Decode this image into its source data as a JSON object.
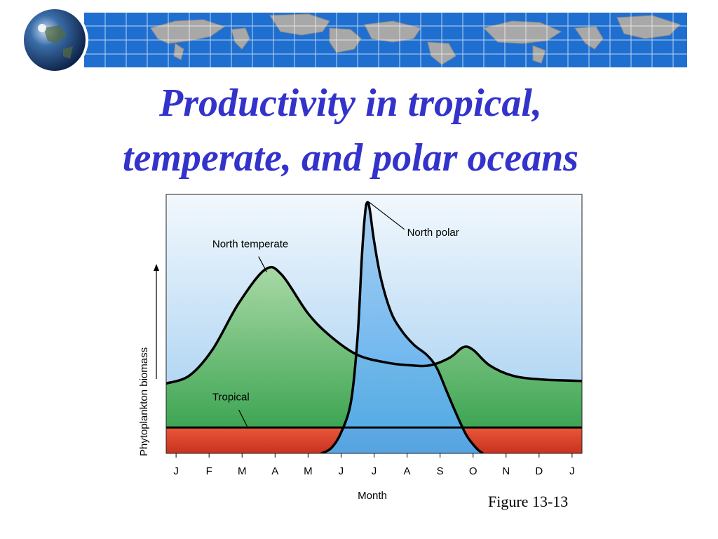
{
  "slide": {
    "title_line1": "Productivity in tropical,",
    "title_line2": "temperate, and polar oceans",
    "figure_caption": "Figure 13-13"
  },
  "colors": {
    "title": "#3333cc",
    "banner": "#1f6fd0",
    "tropical": "#d9462f",
    "temperate": "#5cb85c",
    "polar": "#6fb8ee",
    "sky_top": "#f2f8fd",
    "sky_bottom": "#9ccbf0"
  },
  "chart_data": {
    "type": "area",
    "xlabel": "Month",
    "ylabel": "Phytoplankton biomass",
    "categories": [
      "J",
      "F",
      "M",
      "A",
      "M",
      "J",
      "J",
      "A",
      "S",
      "O",
      "N",
      "D",
      "J"
    ],
    "x_range": [
      0,
      12.6
    ],
    "y_range": [
      0,
      100
    ],
    "y_tick_labels": false,
    "series": [
      {
        "name": "Tropical",
        "points": [
          [
            0,
            10
          ],
          [
            12.6,
            10
          ]
        ]
      },
      {
        "name": "North temperate",
        "points": [
          [
            0,
            27
          ],
          [
            0.7,
            30
          ],
          [
            1.4,
            40
          ],
          [
            2.2,
            58
          ],
          [
            3.0,
            71
          ],
          [
            3.5,
            69
          ],
          [
            4.3,
            54
          ],
          [
            5.0,
            45
          ],
          [
            5.8,
            38
          ],
          [
            6.7,
            35
          ],
          [
            7.4,
            34
          ],
          [
            8.0,
            34
          ],
          [
            8.6,
            37
          ],
          [
            9.0,
            41
          ],
          [
            9.3,
            40
          ],
          [
            9.8,
            34
          ],
          [
            10.5,
            30
          ],
          [
            11.4,
            28.5
          ],
          [
            12.6,
            28
          ]
        ]
      },
      {
        "name": "North polar",
        "points": [
          [
            4.7,
            0
          ],
          [
            5.0,
            2
          ],
          [
            5.3,
            8
          ],
          [
            5.6,
            20
          ],
          [
            5.8,
            45
          ],
          [
            5.93,
            76
          ],
          [
            6.03,
            93
          ],
          [
            6.1,
            97
          ],
          [
            6.17,
            94
          ],
          [
            6.3,
            82
          ],
          [
            6.5,
            68
          ],
          [
            6.8,
            55
          ],
          [
            7.1,
            48
          ],
          [
            7.5,
            42
          ],
          [
            7.9,
            38
          ],
          [
            8.2,
            33
          ],
          [
            8.5,
            24
          ],
          [
            8.8,
            15
          ],
          [
            9.1,
            7
          ],
          [
            9.4,
            2
          ],
          [
            9.6,
            0
          ]
        ]
      }
    ],
    "annotations": [
      "North polar",
      "North temperate",
      "Tropical"
    ]
  }
}
